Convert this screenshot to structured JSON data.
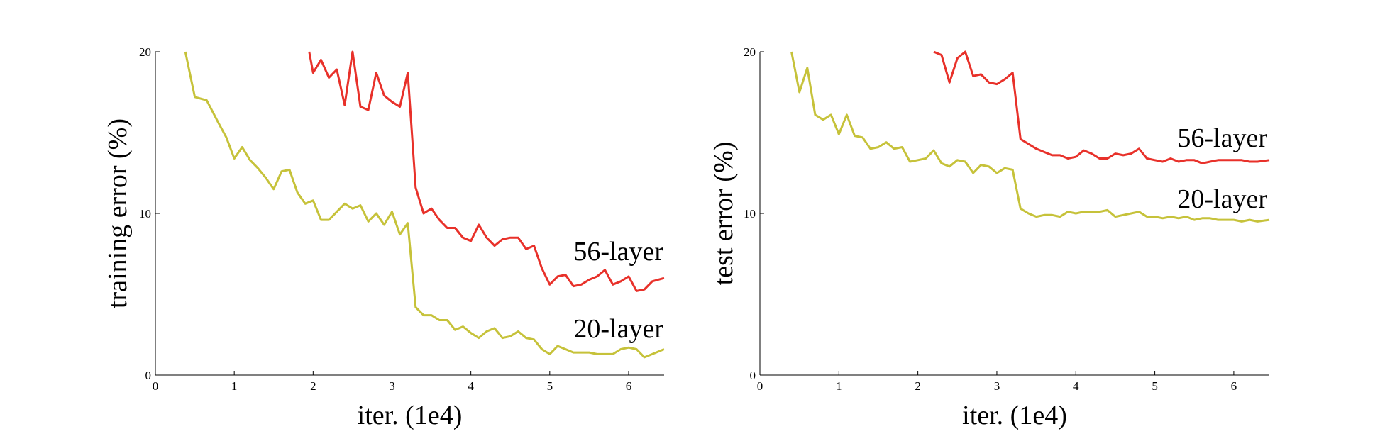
{
  "chart_data": [
    {
      "type": "line",
      "xlabel": "iter. (1e4)",
      "ylabel": "training error (%)",
      "xlim": [
        0,
        6.45
      ],
      "ylim": [
        0,
        20
      ],
      "xticks": [
        "0",
        "1",
        "2",
        "3",
        "4",
        "5",
        "6"
      ],
      "yticks": [
        "0",
        "10",
        "20"
      ],
      "grid": false,
      "series": [
        {
          "name": "56-layer",
          "color": "#e8312a",
          "x": [
            1.95,
            2.0,
            2.1,
            2.2,
            2.3,
            2.4,
            2.5,
            2.6,
            2.7,
            2.8,
            2.9,
            3.0,
            3.1,
            3.2,
            3.3,
            3.4,
            3.5,
            3.6,
            3.7,
            3.8,
            3.9,
            4.0,
            4.1,
            4.2,
            4.3,
            4.4,
            4.5,
            4.6,
            4.7,
            4.8,
            4.9,
            5.0,
            5.1,
            5.2,
            5.3,
            5.4,
            5.5,
            5.6,
            5.7,
            5.8,
            5.9,
            6.0,
            6.1,
            6.2,
            6.3,
            6.45
          ],
          "y": [
            20.0,
            18.7,
            19.5,
            18.4,
            18.9,
            16.7,
            20.0,
            16.6,
            16.4,
            18.7,
            17.3,
            16.9,
            16.6,
            18.7,
            11.6,
            10.0,
            10.3,
            9.6,
            9.1,
            9.1,
            8.5,
            8.3,
            9.3,
            8.5,
            8.0,
            8.4,
            8.5,
            8.5,
            7.8,
            8.0,
            6.6,
            5.6,
            6.1,
            6.2,
            5.5,
            5.6,
            5.9,
            6.1,
            6.5,
            5.6,
            5.8,
            6.1,
            5.2,
            5.3,
            5.8,
            6.0
          ]
        },
        {
          "name": "20-layer",
          "color": "#c6c23a",
          "x": [
            0.38,
            0.5,
            0.65,
            0.8,
            0.9,
            1.0,
            1.1,
            1.2,
            1.3,
            1.4,
            1.5,
            1.6,
            1.7,
            1.8,
            1.9,
            2.0,
            2.1,
            2.2,
            2.3,
            2.4,
            2.5,
            2.6,
            2.7,
            2.8,
            2.9,
            3.0,
            3.1,
            3.2,
            3.3,
            3.4,
            3.5,
            3.6,
            3.7,
            3.8,
            3.9,
            4.0,
            4.1,
            4.2,
            4.3,
            4.4,
            4.5,
            4.6,
            4.7,
            4.8,
            4.9,
            5.0,
            5.1,
            5.2,
            5.3,
            5.4,
            5.5,
            5.6,
            5.7,
            5.8,
            5.9,
            6.0,
            6.1,
            6.2,
            6.3,
            6.45
          ],
          "y": [
            20.0,
            17.2,
            17.0,
            15.6,
            14.7,
            13.4,
            14.1,
            13.3,
            12.8,
            12.2,
            11.5,
            12.6,
            12.7,
            11.3,
            10.6,
            10.8,
            9.6,
            9.6,
            10.1,
            10.6,
            10.3,
            10.5,
            9.5,
            10.0,
            9.3,
            10.1,
            8.7,
            9.4,
            4.2,
            3.7,
            3.7,
            3.4,
            3.4,
            2.8,
            3.0,
            2.6,
            2.3,
            2.7,
            2.9,
            2.3,
            2.4,
            2.7,
            2.3,
            2.2,
            1.6,
            1.3,
            1.8,
            1.6,
            1.4,
            1.4,
            1.4,
            1.3,
            1.3,
            1.3,
            1.6,
            1.7,
            1.6,
            1.1,
            1.3,
            1.6
          ]
        }
      ]
    },
    {
      "type": "line",
      "xlabel": "iter. (1e4)",
      "ylabel": "test error (%)",
      "xlim": [
        0,
        6.45
      ],
      "ylim": [
        0,
        20
      ],
      "xticks": [
        "0",
        "1",
        "2",
        "3",
        "4",
        "5",
        "6"
      ],
      "yticks": [
        "0",
        "10",
        "20"
      ],
      "grid": false,
      "series": [
        {
          "name": "56-layer",
          "color": "#e8312a",
          "x": [
            2.2,
            2.3,
            2.4,
            2.5,
            2.6,
            2.7,
            2.8,
            2.9,
            3.0,
            3.1,
            3.2,
            3.3,
            3.4,
            3.5,
            3.6,
            3.7,
            3.8,
            3.9,
            4.0,
            4.1,
            4.2,
            4.3,
            4.4,
            4.5,
            4.6,
            4.7,
            4.8,
            4.9,
            5.0,
            5.1,
            5.2,
            5.3,
            5.4,
            5.5,
            5.6,
            5.7,
            5.8,
            5.9,
            6.0,
            6.1,
            6.2,
            6.3,
            6.45
          ],
          "y": [
            20.0,
            19.8,
            18.1,
            19.6,
            20.0,
            18.5,
            18.6,
            18.1,
            18.0,
            18.3,
            18.7,
            14.6,
            14.3,
            14.0,
            13.8,
            13.6,
            13.6,
            13.4,
            13.5,
            13.9,
            13.7,
            13.4,
            13.4,
            13.7,
            13.6,
            13.7,
            14.0,
            13.4,
            13.3,
            13.2,
            13.4,
            13.2,
            13.3,
            13.3,
            13.1,
            13.2,
            13.3,
            13.3,
            13.3,
            13.3,
            13.2,
            13.2,
            13.3
          ]
        },
        {
          "name": "20-layer",
          "color": "#c6c23a",
          "x": [
            0.4,
            0.5,
            0.6,
            0.7,
            0.8,
            0.9,
            1.0,
            1.1,
            1.2,
            1.3,
            1.4,
            1.5,
            1.6,
            1.7,
            1.8,
            1.9,
            2.0,
            2.1,
            2.2,
            2.3,
            2.4,
            2.5,
            2.6,
            2.7,
            2.8,
            2.9,
            3.0,
            3.1,
            3.2,
            3.3,
            3.4,
            3.5,
            3.6,
            3.7,
            3.8,
            3.9,
            4.0,
            4.1,
            4.2,
            4.3,
            4.4,
            4.5,
            4.6,
            4.7,
            4.8,
            4.9,
            5.0,
            5.1,
            5.2,
            5.3,
            5.4,
            5.5,
            5.6,
            5.7,
            5.8,
            5.9,
            6.0,
            6.1,
            6.2,
            6.3,
            6.45
          ],
          "y": [
            20.0,
            17.5,
            19.0,
            16.1,
            15.8,
            16.1,
            14.9,
            16.1,
            14.8,
            14.7,
            14.0,
            14.1,
            14.4,
            14.0,
            14.1,
            13.2,
            13.3,
            13.4,
            13.9,
            13.1,
            12.9,
            13.3,
            13.2,
            12.5,
            13.0,
            12.9,
            12.5,
            12.8,
            12.7,
            10.3,
            10.0,
            9.8,
            9.9,
            9.9,
            9.8,
            10.1,
            10.0,
            10.1,
            10.1,
            10.1,
            10.2,
            9.8,
            9.9,
            10.0,
            10.1,
            9.8,
            9.8,
            9.7,
            9.8,
            9.7,
            9.8,
            9.6,
            9.7,
            9.7,
            9.6,
            9.6,
            9.6,
            9.5,
            9.6,
            9.5,
            9.6
          ]
        }
      ]
    }
  ]
}
